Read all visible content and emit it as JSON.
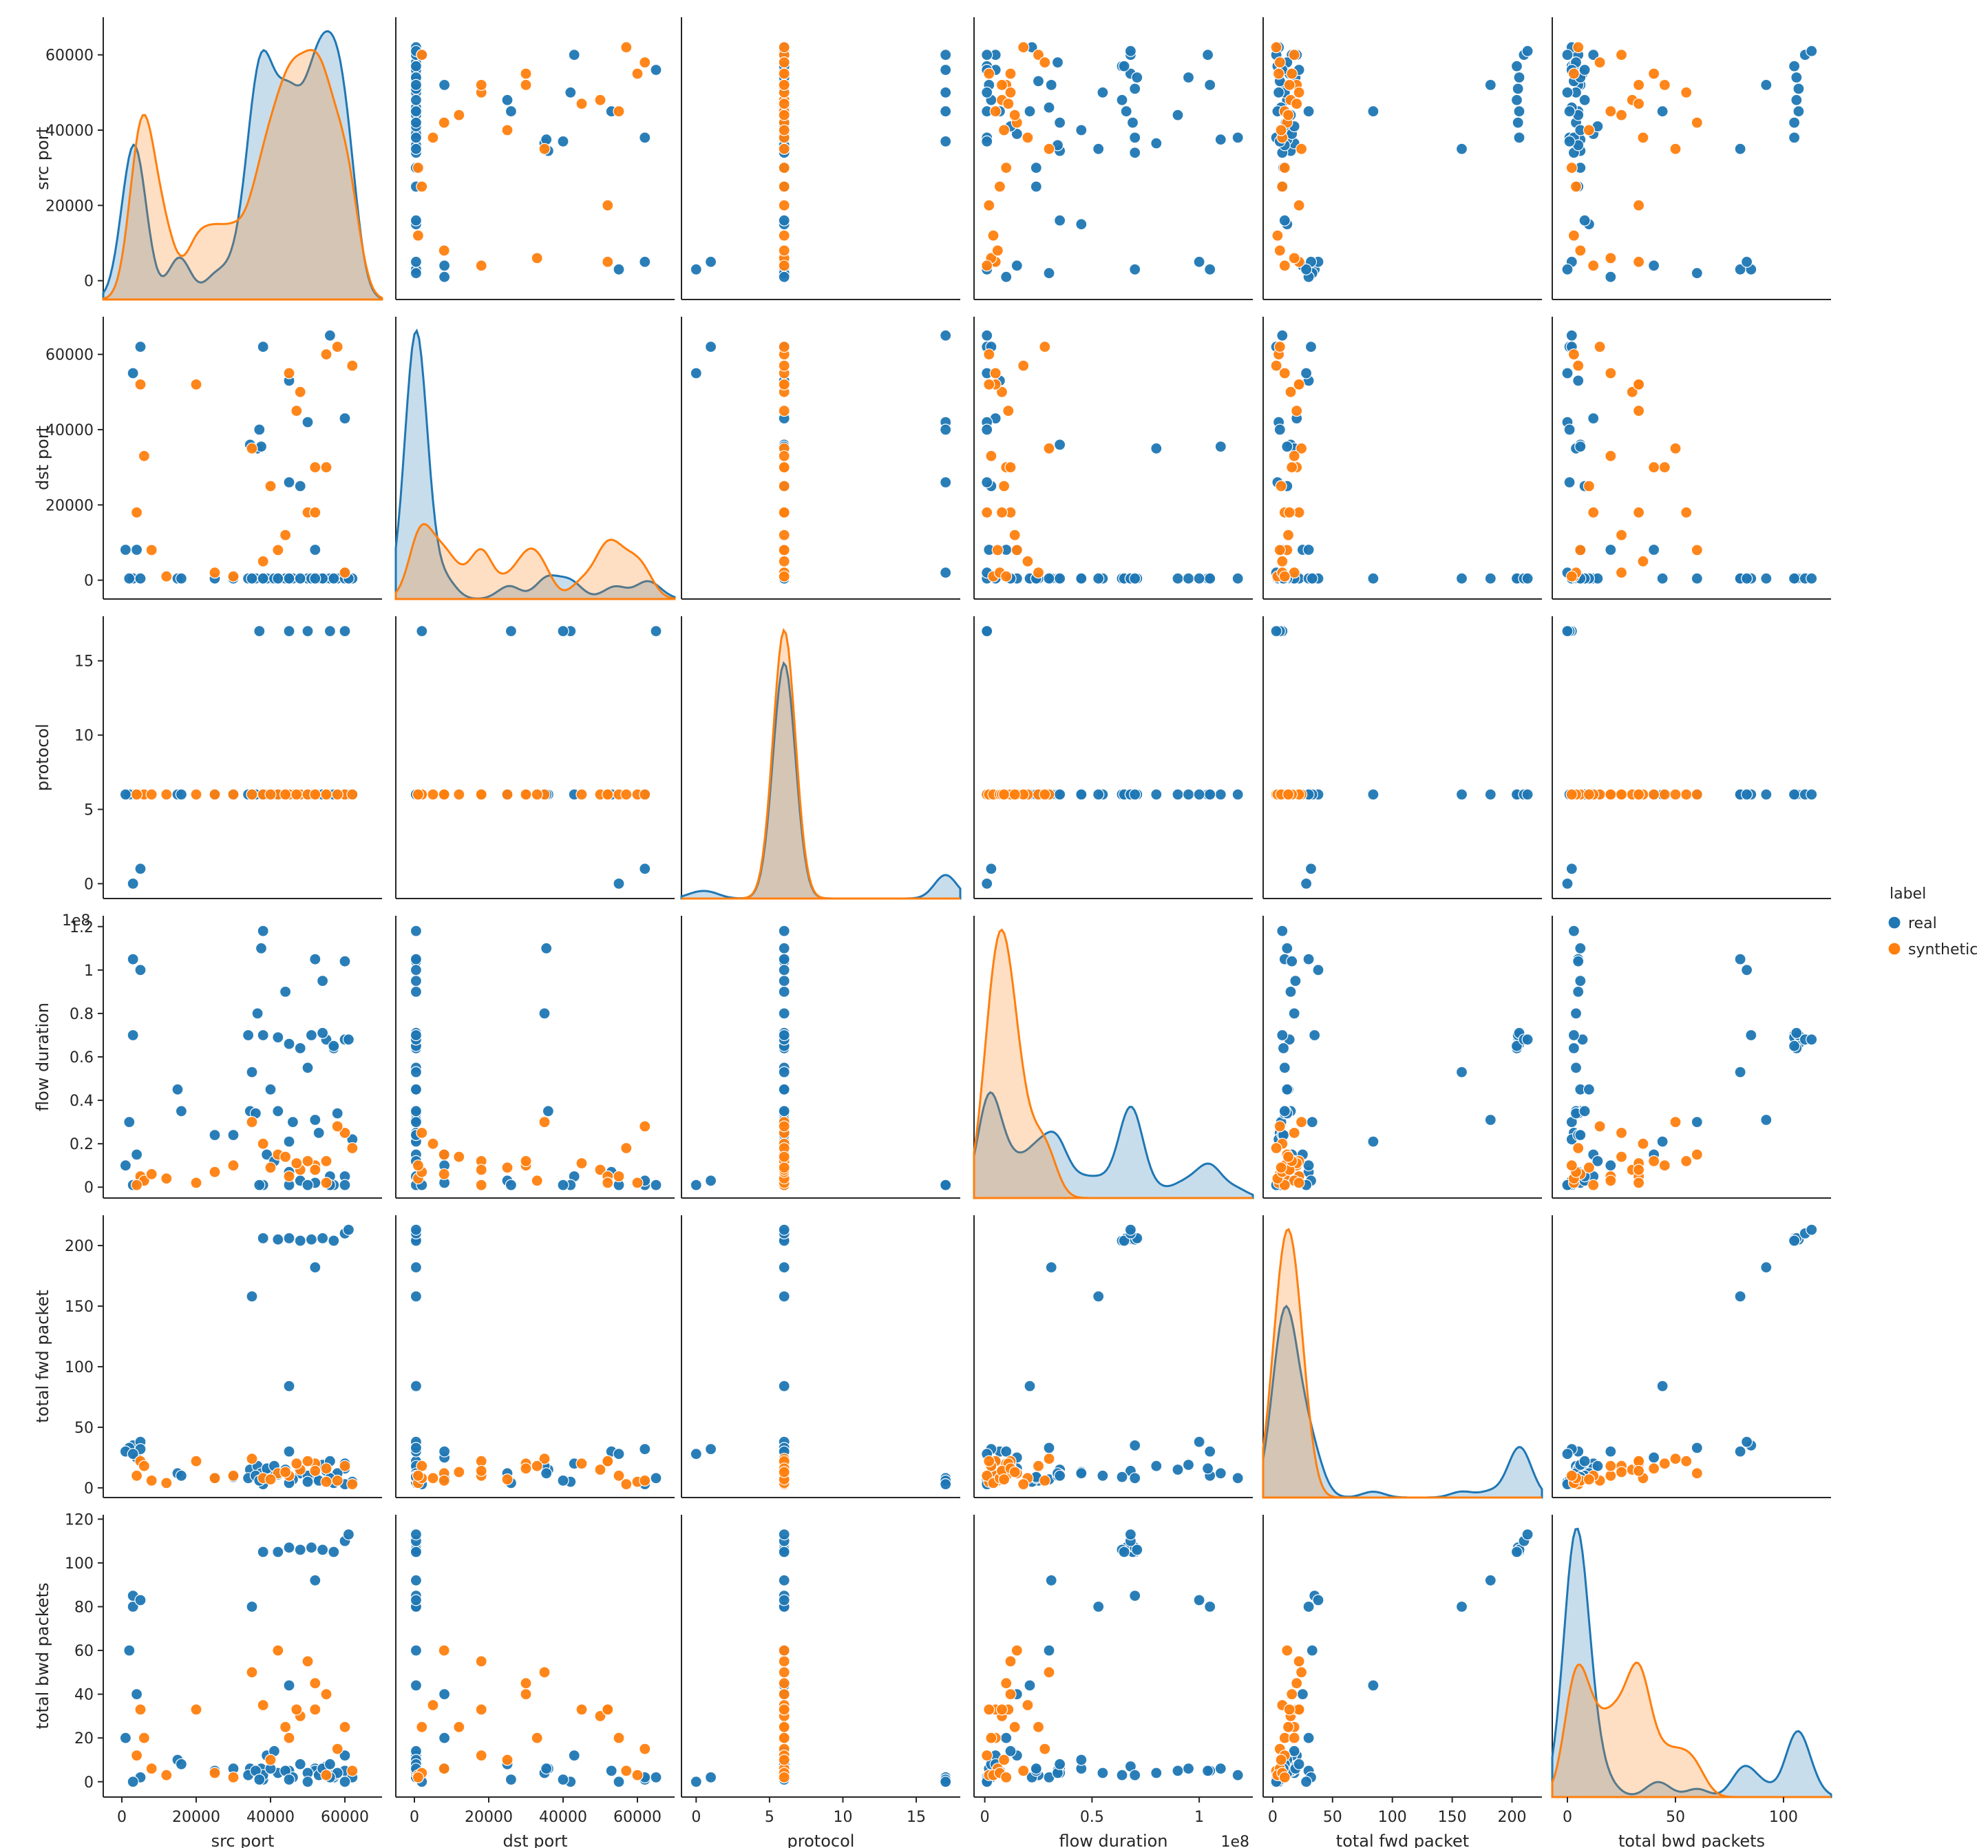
{
  "chart_data": {
    "type": "scatter",
    "variables": [
      "src port",
      "dst port",
      "protocol",
      "flow duration",
      "total fwd packet",
      "total bwd packets"
    ],
    "axis_labels": [
      "src port",
      "dst port",
      "protocol",
      "flow duration",
      "total fwd packet",
      "total bwd packets"
    ],
    "ranges": [
      [
        -5000,
        70000
      ],
      [
        -5000,
        70000
      ],
      [
        -1,
        18
      ],
      [
        -0.05,
        1.25
      ],
      [
        -8,
        225
      ],
      [
        -7,
        122
      ]
    ],
    "ticks": [
      [
        0,
        20000,
        40000,
        60000
      ],
      [
        0,
        20000,
        40000,
        60000
      ],
      [
        0,
        5,
        10,
        15
      ],
      [
        0.0,
        0.2,
        0.4,
        0.6,
        0.8,
        1.0,
        1.2
      ],
      [
        0,
        50,
        100,
        150,
        200
      ],
      [
        0,
        20,
        40,
        60,
        80,
        100,
        120
      ]
    ],
    "bottom_ticks": [
      [
        0,
        20000,
        40000,
        60000
      ],
      [
        0,
        20000,
        40000,
        60000
      ],
      [
        0,
        5,
        10,
        15
      ],
      [
        0.0,
        0.5,
        1.0
      ],
      [
        0,
        50,
        100,
        150,
        200
      ],
      [
        0,
        50,
        100
      ]
    ],
    "exponent_label": "1e8",
    "legend": {
      "title": "label",
      "position": "right",
      "entries": [
        {
          "name": "real",
          "color": "#1f77b4"
        },
        {
          "name": "synthetic",
          "color": "#ff7f0e"
        }
      ]
    },
    "series": [
      {
        "name": "real",
        "color": "#1f77b4",
        "points": [
          [
            57000,
            450,
            6,
            0.01,
            4,
            2
          ],
          [
            52000,
            8080,
            6,
            0.02,
            8,
            6
          ],
          [
            48000,
            25000,
            6,
            0.03,
            12,
            8
          ],
          [
            60000,
            43000,
            6,
            0.05,
            20,
            12
          ],
          [
            45000,
            53000,
            6,
            0.07,
            30,
            5
          ],
          [
            38000,
            62000,
            6,
            0.01,
            3,
            1
          ],
          [
            34500,
            36000,
            6,
            0.35,
            15,
            6
          ],
          [
            36500,
            35000,
            6,
            0.8,
            18,
            4
          ],
          [
            37500,
            35500,
            6,
            1.1,
            12,
            6
          ],
          [
            38000,
            443,
            6,
            1.18,
            8,
            3
          ],
          [
            52000,
            443,
            6,
            1.05,
            10,
            5
          ],
          [
            55000,
            443,
            6,
            0.68,
            14,
            7
          ],
          [
            57000,
            443,
            6,
            0.64,
            9,
            3
          ],
          [
            60000,
            443,
            6,
            1.04,
            16,
            5
          ],
          [
            42000,
            443,
            6,
            0.35,
            11,
            4
          ],
          [
            46000,
            443,
            6,
            0.3,
            7,
            2
          ],
          [
            53000,
            443,
            6,
            0.25,
            6,
            3
          ],
          [
            40000,
            443,
            6,
            0.45,
            13,
            6
          ],
          [
            50000,
            443,
            6,
            0.55,
            10,
            4
          ],
          [
            44000,
            443,
            6,
            0.9,
            15,
            5
          ],
          [
            34000,
            443,
            6,
            0.7,
            8,
            3
          ],
          [
            62000,
            443,
            6,
            0.22,
            5,
            2
          ],
          [
            36000,
            443,
            6,
            0.34,
            10,
            5
          ],
          [
            58000,
            443,
            6,
            0.34,
            12,
            4
          ],
          [
            54000,
            443,
            6,
            0.95,
            19,
            6
          ],
          [
            56000,
            443,
            6,
            0.05,
            22,
            8
          ],
          [
            39000,
            443,
            6,
            0.15,
            16,
            12
          ],
          [
            41000,
            443,
            6,
            0.12,
            18,
            14
          ],
          [
            38000,
            443,
            6,
            0.7,
            206,
            105
          ],
          [
            42000,
            443,
            6,
            0.69,
            205,
            105
          ],
          [
            45000,
            443,
            6,
            0.66,
            206,
            107
          ],
          [
            48000,
            443,
            6,
            0.64,
            204,
            106
          ],
          [
            51000,
            443,
            6,
            0.7,
            205,
            107
          ],
          [
            54000,
            443,
            6,
            0.71,
            206,
            106
          ],
          [
            57000,
            443,
            6,
            0.65,
            204,
            105
          ],
          [
            60000,
            443,
            6,
            0.68,
            210,
            110
          ],
          [
            61000,
            443,
            6,
            0.68,
            213,
            113
          ],
          [
            35000,
            443,
            6,
            0.53,
            158,
            80
          ],
          [
            52000,
            443,
            6,
            0.31,
            182,
            92
          ],
          [
            45000,
            443,
            6,
            0.21,
            84,
            44
          ],
          [
            3000,
            443,
            6,
            1.05,
            30,
            80
          ],
          [
            3000,
            443,
            6,
            0.7,
            35,
            85
          ],
          [
            5000,
            443,
            6,
            1.0,
            38,
            83
          ],
          [
            2000,
            443,
            6,
            0.3,
            33,
            60
          ],
          [
            4000,
            8080,
            6,
            0.15,
            25,
            40
          ],
          [
            1000,
            8080,
            6,
            0.1,
            30,
            20
          ],
          [
            15000,
            443,
            6,
            0.45,
            12,
            10
          ],
          [
            16000,
            443,
            6,
            0.35,
            10,
            8
          ],
          [
            25000,
            443,
            6,
            0.24,
            8,
            5
          ],
          [
            30000,
            443,
            6,
            0.24,
            9,
            6
          ],
          [
            5000,
            62000,
            1,
            0.03,
            32,
            2
          ],
          [
            3000,
            55000,
            0,
            0.01,
            28,
            0
          ],
          [
            56000,
            65000,
            17,
            0.01,
            8,
            2
          ],
          [
            45000,
            26000,
            17,
            0.01,
            4,
            1
          ],
          [
            50000,
            42000,
            17,
            0.01,
            5,
            0
          ],
          [
            37000,
            40000,
            17,
            0.01,
            6,
            1
          ],
          [
            60000,
            2000,
            17,
            0.01,
            3,
            0
          ]
        ]
      },
      {
        "name": "synthetic",
        "color": "#ff7f0e",
        "points": [
          [
            55000,
            60000,
            6,
            0.02,
            5,
            3
          ],
          [
            45000,
            55000,
            6,
            0.05,
            10,
            20
          ],
          [
            48000,
            50000,
            6,
            0.08,
            15,
            30
          ],
          [
            52000,
            30000,
            6,
            0.1,
            20,
            45
          ],
          [
            50000,
            18000,
            6,
            0.12,
            22,
            55
          ],
          [
            42000,
            8000,
            6,
            0.15,
            12,
            60
          ],
          [
            38000,
            5000,
            6,
            0.2,
            8,
            35
          ],
          [
            60000,
            2000,
            6,
            0.25,
            18,
            25
          ],
          [
            35000,
            35000,
            6,
            0.3,
            24,
            50
          ],
          [
            58000,
            62000,
            6,
            0.28,
            6,
            15
          ],
          [
            62000,
            57000,
            6,
            0.18,
            3,
            5
          ],
          [
            47000,
            45000,
            6,
            0.11,
            20,
            33
          ],
          [
            5000,
            52000,
            6,
            0.05,
            22,
            33
          ],
          [
            6000,
            33000,
            6,
            0.03,
            18,
            20
          ],
          [
            4000,
            18000,
            6,
            0.01,
            10,
            12
          ],
          [
            20000,
            52000,
            6,
            0.02,
            22,
            33
          ],
          [
            8000,
            8000,
            6,
            0.06,
            6,
            6
          ],
          [
            12000,
            1000,
            6,
            0.04,
            4,
            3
          ],
          [
            25000,
            2000,
            6,
            0.07,
            8,
            4
          ],
          [
            30000,
            1000,
            6,
            0.1,
            10,
            2
          ],
          [
            52000,
            18000,
            6,
            0.08,
            14,
            33
          ],
          [
            55000,
            30000,
            6,
            0.12,
            16,
            40
          ],
          [
            40000,
            25000,
            6,
            0.09,
            7,
            10
          ],
          [
            44000,
            12000,
            6,
            0.14,
            13,
            25
          ]
        ]
      }
    ]
  }
}
